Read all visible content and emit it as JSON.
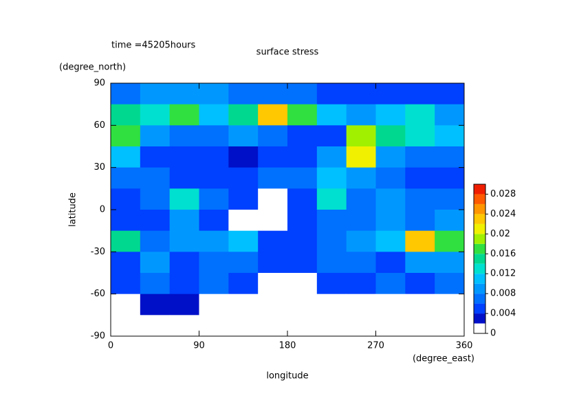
{
  "chart_data": {
    "type": "contour",
    "title": "surface stress",
    "subtitle": "time =45205hours",
    "x_label": "longitude",
    "x_unit": "(degree_east)",
    "y_label": "latitude",
    "y_unit": "(degree_north)",
    "xlim": [
      0,
      360
    ],
    "xticks": [
      0,
      90,
      180,
      270,
      360
    ],
    "ylim": [
      -90,
      90
    ],
    "yticks": [
      -90,
      -60,
      -30,
      0,
      30,
      60,
      90
    ],
    "lons": [
      15,
      45,
      75,
      105,
      135,
      165,
      195,
      225,
      255,
      285,
      315,
      345
    ],
    "lats": [
      82.5,
      67.5,
      52.5,
      37.5,
      22.5,
      7.5,
      -7.5,
      -22.5,
      -37.5,
      -52.5,
      -67.5,
      -82.5
    ],
    "z": [
      [
        0.006,
        0.008,
        0.008,
        0.008,
        0.006,
        0.006,
        0.006,
        0.005,
        0.004,
        0.004,
        0.005,
        0.004
      ],
      [
        0.014,
        0.012,
        0.016,
        0.01,
        0.014,
        0.022,
        0.016,
        0.01,
        0.008,
        0.01,
        0.012,
        0.008
      ],
      [
        0.016,
        0.008,
        0.006,
        0.006,
        0.008,
        0.006,
        0.004,
        0.004,
        0.018,
        0.014,
        0.012,
        0.01
      ],
      [
        0.01,
        0.004,
        0.004,
        0.004,
        0.002,
        0.004,
        0.004,
        0.008,
        0.02,
        0.008,
        0.006,
        0.006
      ],
      [
        0.006,
        0.006,
        0.004,
        0.004,
        0.004,
        0.006,
        0.006,
        0.01,
        0.008,
        0.006,
        0.004,
        0.004
      ],
      [
        0.004,
        0.006,
        0.012,
        0.006,
        0.004,
        0.001,
        0.004,
        0.012,
        0.006,
        0.008,
        0.006,
        0.006
      ],
      [
        0.004,
        0.004,
        0.008,
        0.004,
        0.001,
        0.001,
        0.004,
        0.006,
        0.006,
        0.008,
        0.006,
        0.008
      ],
      [
        0.014,
        0.006,
        0.008,
        0.008,
        0.01,
        0.004,
        0.004,
        0.006,
        0.008,
        0.01,
        0.022,
        0.016
      ],
      [
        0.004,
        0.008,
        0.004,
        0.006,
        0.006,
        0.004,
        0.004,
        0.006,
        0.006,
        0.004,
        0.008,
        0.008
      ],
      [
        0.004,
        0.006,
        0.004,
        0.006,
        0.004,
        0.001,
        0.001,
        0.004,
        0.004,
        0.006,
        0.004,
        0.006
      ],
      [
        0.001,
        0.002,
        0.002,
        0.001,
        0.001,
        0.001,
        0.001,
        0.001,
        0.001,
        0.001,
        0.001,
        0.001
      ],
      [
        0,
        0,
        0,
        0,
        0,
        0,
        0,
        0,
        0,
        0,
        0,
        0
      ]
    ],
    "levels": [
      0,
      0.002,
      0.004,
      0.006,
      0.008,
      0.01,
      0.012,
      0.014,
      0.016,
      0.018,
      0.02,
      0.022,
      0.024,
      0.026,
      0.028,
      0.03
    ],
    "colors": [
      "#ffffff",
      "#0010c8",
      "#0040ff",
      "#0070ff",
      "#0098ff",
      "#00c0ff",
      "#00e0d0",
      "#00d890",
      "#30e040",
      "#a0f000",
      "#f0f000",
      "#ffc800",
      "#ff9600",
      "#ff5a00",
      "#f01e00"
    ],
    "cbar_ticks": [
      0,
      0.004,
      0.008,
      0.012,
      0.016,
      0.02,
      0.024,
      0.028
    ]
  }
}
